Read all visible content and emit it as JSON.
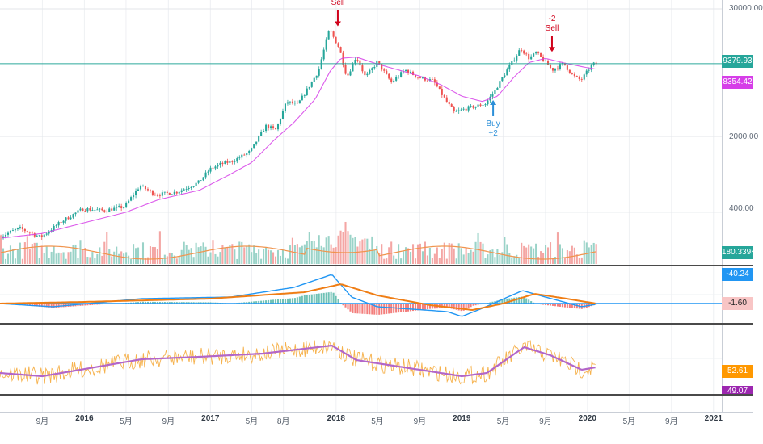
{
  "chart_data": {
    "type": "candlestick",
    "price_axis": {
      "scale": "log",
      "ticks": [
        {
          "label": "30000.00",
          "value": 30000
        },
        {
          "label": "2000.00",
          "value": 2000
        },
        {
          "label": "400.00",
          "value": 400
        }
      ]
    },
    "x_axis": {
      "range": [
        "2015-05-01",
        "2021-01-25"
      ],
      "ticks": [
        {
          "label": "9月",
          "date": "2015-09-01",
          "bold": false
        },
        {
          "label": "2016",
          "date": "2016-01-01",
          "bold": true
        },
        {
          "label": "5月",
          "date": "2016-05-01",
          "bold": false
        },
        {
          "label": "9月",
          "date": "2016-09-01",
          "bold": false
        },
        {
          "label": "2017",
          "date": "2017-01-01",
          "bold": true
        },
        {
          "label": "5月",
          "date": "2017-05-01",
          "bold": false
        },
        {
          "label": "8月",
          "date": "2017-08-01",
          "bold": false
        },
        {
          "label": "2018",
          "date": "2018-01-01",
          "bold": true
        },
        {
          "label": "5月",
          "date": "2018-05-01",
          "bold": false
        },
        {
          "label": "9月",
          "date": "2018-09-01",
          "bold": false
        },
        {
          "label": "2019",
          "date": "2019-01-01",
          "bold": true
        },
        {
          "label": "5月",
          "date": "2019-05-01",
          "bold": false
        },
        {
          "label": "9月",
          "date": "2019-09-01",
          "bold": false
        },
        {
          "label": "2020",
          "date": "2020-01-01",
          "bold": true
        },
        {
          "label": "5月",
          "date": "2020-05-01",
          "bold": false
        },
        {
          "label": "9月",
          "date": "2020-09-01",
          "bold": false
        },
        {
          "label": "2021",
          "date": "2021-01-01",
          "bold": true
        }
      ]
    },
    "price_path": [
      [
        "2015-05-01",
        235
      ],
      [
        "2015-07-01",
        285
      ],
      [
        "2015-09-01",
        235
      ],
      [
        "2015-11-01",
        330
      ],
      [
        "2016-01-01",
        430
      ],
      [
        "2016-03-01",
        415
      ],
      [
        "2016-05-01",
        450
      ],
      [
        "2016-06-15",
        700
      ],
      [
        "2016-08-01",
        580
      ],
      [
        "2016-10-01",
        615
      ],
      [
        "2016-12-01",
        750
      ],
      [
        "2017-01-05",
        1000
      ],
      [
        "2017-02-01",
        1100
      ],
      [
        "2017-03-15",
        1200
      ],
      [
        "2017-05-01",
        1450
      ],
      [
        "2017-06-15",
        2500
      ],
      [
        "2017-07-15",
        2300
      ],
      [
        "2017-08-15",
        4200
      ],
      [
        "2017-09-15",
        3900
      ],
      [
        "2017-10-15",
        5500
      ],
      [
        "2017-11-15",
        8000
      ],
      [
        "2017-12-17",
        19500
      ],
      [
        "2018-01-15",
        13000
      ],
      [
        "2018-02-06",
        7000
      ],
      [
        "2018-03-05",
        11000
      ],
      [
        "2018-04-01",
        7000
      ],
      [
        "2018-05-05",
        9700
      ],
      [
        "2018-06-15",
        6300
      ],
      [
        "2018-07-25",
        8200
      ],
      [
        "2018-09-01",
        7000
      ],
      [
        "2018-10-15",
        6500
      ],
      [
        "2018-11-20",
        4300
      ],
      [
        "2018-12-15",
        3300
      ],
      [
        "2019-01-15",
        3600
      ],
      [
        "2019-02-15",
        3800
      ],
      [
        "2019-03-15",
        4000
      ],
      [
        "2019-04-10",
        5200
      ],
      [
        "2019-05-15",
        8000
      ],
      [
        "2019-06-26",
        13000
      ],
      [
        "2019-07-20",
        10500
      ],
      [
        "2019-08-10",
        11800
      ],
      [
        "2019-09-01",
        10000
      ],
      [
        "2019-09-25",
        8200
      ],
      [
        "2019-10-28",
        9400
      ],
      [
        "2019-11-25",
        7200
      ],
      [
        "2019-12-18",
        6600
      ],
      [
        "2020-01-15",
        8800
      ],
      [
        "2020-01-25",
        9350
      ]
    ],
    "ma_path": [
      [
        "2015-05-01",
        230
      ],
      [
        "2015-09-01",
        255
      ],
      [
        "2016-01-01",
        320
      ],
      [
        "2016-05-01",
        400
      ],
      [
        "2016-08-01",
        520
      ],
      [
        "2016-12-01",
        640
      ],
      [
        "2017-03-01",
        900
      ],
      [
        "2017-05-01",
        1150
      ],
      [
        "2017-07-01",
        1800
      ],
      [
        "2017-09-01",
        2700
      ],
      [
        "2017-11-01",
        4400
      ],
      [
        "2017-12-15",
        8000
      ],
      [
        "2018-01-15",
        10500
      ],
      [
        "2018-03-01",
        10800
      ],
      [
        "2018-05-01",
        9300
      ],
      [
        "2018-07-01",
        8200
      ],
      [
        "2018-09-01",
        7200
      ],
      [
        "2018-11-01",
        6000
      ],
      [
        "2019-01-01",
        4700
      ],
      [
        "2019-03-01",
        4200
      ],
      [
        "2019-04-15",
        4700
      ],
      [
        "2019-06-01",
        7000
      ],
      [
        "2019-07-15",
        9600
      ],
      [
        "2019-09-01",
        10500
      ],
      [
        "2019-11-01",
        9400
      ],
      [
        "2020-01-01",
        8600
      ],
      [
        "2020-01-25",
        8354
      ]
    ],
    "price_ma_label": {
      "text": "8354.42",
      "color": "#d63ee8"
    },
    "current_price": {
      "text": "9379.93",
      "value": 9379.93,
      "color": "#26a69a"
    },
    "volume": {
      "label": "180.339K",
      "color": "#26a69a",
      "ma_color": "#f0944d"
    },
    "macd": {
      "macd_color": "#2196f3",
      "signal_color": "#ef7d14",
      "labels": [
        {
          "text": "-40.24",
          "color": "#2196f3"
        },
        {
          "text": "-1.60",
          "color": "#f8c5c5"
        }
      ]
    },
    "rsi": {
      "rsi_color": "#f6b24d",
      "ma_color": "#b266c9",
      "labels": [
        {
          "text": "52.61",
          "color": "#ff9800"
        },
        {
          "text": "49.07",
          "color": "#9c27b0"
        }
      ]
    },
    "signals": [
      {
        "type": "sell",
        "date": "2018-01-06",
        "lines": [
          "Sell"
        ]
      },
      {
        "type": "buy",
        "date": "2019-04-02",
        "lines": [
          "Buy",
          "+2"
        ]
      },
      {
        "type": "sell",
        "date": "2019-09-20",
        "lines": [
          "-2",
          "Sell"
        ]
      }
    ]
  }
}
